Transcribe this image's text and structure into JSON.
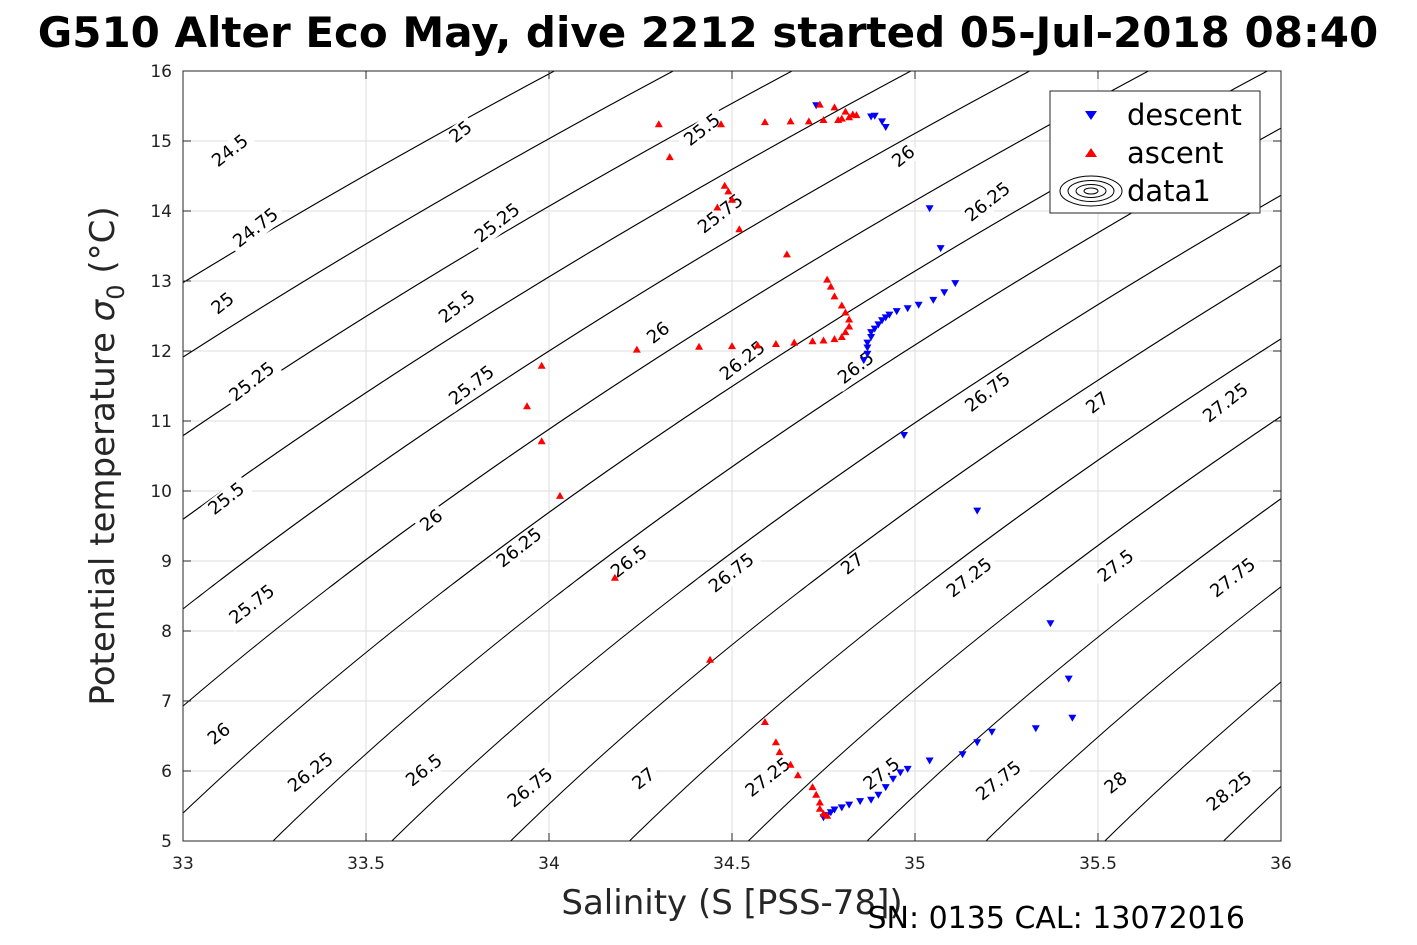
{
  "title": "G510 Alter Eco May, dive 2212 started 05-Jul-2018 08:40",
  "footer": "SN: 0135  CAL: 13072016",
  "colors": {
    "descent": "#0000ff",
    "ascent": "#ff0000",
    "contour": "#000000",
    "grid": "#dedede"
  },
  "chart_data": {
    "type": "scatter",
    "title": "G510 Alter Eco May, dive 2212 started 05-Jul-2018 08:40",
    "xlabel": "Salinity (S [PSS-78])",
    "ylabel_main": "Potential temperature ",
    "ylabel_sigma": "σ",
    "ylabel_sub": "0",
    "ylabel_unit": " (°C)",
    "xlim": [
      33,
      36
    ],
    "ylim": [
      5,
      16
    ],
    "xticks": [
      33,
      33.5,
      34,
      34.5,
      35,
      35.5,
      36
    ],
    "yticks": [
      5,
      6,
      7,
      8,
      9,
      10,
      11,
      12,
      13,
      14,
      15,
      16
    ],
    "grid": true,
    "legend": {
      "position": "top-right",
      "entries": [
        "descent",
        "ascent",
        "data1"
      ]
    },
    "contour_levels": [
      "24.5",
      "24.75",
      "25",
      "25.25",
      "25.5",
      "25.75",
      "26",
      "26.25",
      "26.5",
      "26.75",
      "27",
      "27.25",
      "27.5",
      "27.75",
      "28",
      "28.25"
    ],
    "contour_labels": [
      {
        "text": "24.5",
        "x": 33.13,
        "y": 14.85
      },
      {
        "text": "25",
        "x": 33.76,
        "y": 15.12
      },
      {
        "text": "25.5",
        "x": 34.42,
        "y": 15.15
      },
      {
        "text": "26",
        "x": 34.97,
        "y": 14.77
      },
      {
        "text": "24.75",
        "x": 33.2,
        "y": 13.75
      },
      {
        "text": "25.25",
        "x": 33.86,
        "y": 13.82
      },
      {
        "text": "25.75",
        "x": 34.47,
        "y": 13.95
      },
      {
        "text": "26.25",
        "x": 35.2,
        "y": 14.12
      },
      {
        "text": "25",
        "x": 33.11,
        "y": 12.67
      },
      {
        "text": "25.5",
        "x": 33.75,
        "y": 12.62
      },
      {
        "text": "26",
        "x": 34.3,
        "y": 12.25
      },
      {
        "text": "25.25",
        "x": 33.19,
        "y": 11.55
      },
      {
        "text": "25.75",
        "x": 33.79,
        "y": 11.5
      },
      {
        "text": "26.25",
        "x": 34.53,
        "y": 11.85
      },
      {
        "text": "26.5",
        "x": 34.84,
        "y": 11.75
      },
      {
        "text": "26.75",
        "x": 35.2,
        "y": 11.4
      },
      {
        "text": "27",
        "x": 35.5,
        "y": 11.25
      },
      {
        "text": "27.25",
        "x": 35.85,
        "y": 11.25
      },
      {
        "text": "25.5",
        "x": 33.12,
        "y": 9.88
      },
      {
        "text": "26",
        "x": 33.68,
        "y": 9.57
      },
      {
        "text": "26.25",
        "x": 33.92,
        "y": 9.18
      },
      {
        "text": "26.5",
        "x": 34.22,
        "y": 8.98
      },
      {
        "text": "26.75",
        "x": 34.5,
        "y": 8.82
      },
      {
        "text": "27",
        "x": 34.83,
        "y": 8.95
      },
      {
        "text": "27.25",
        "x": 35.15,
        "y": 8.75
      },
      {
        "text": "27.5",
        "x": 35.55,
        "y": 8.92
      },
      {
        "text": "27.75",
        "x": 35.87,
        "y": 8.75
      },
      {
        "text": "25.75",
        "x": 33.19,
        "y": 8.37
      },
      {
        "text": "26",
        "x": 33.1,
        "y": 6.52
      },
      {
        "text": "26.25",
        "x": 33.35,
        "y": 5.97
      },
      {
        "text": "26.5",
        "x": 33.66,
        "y": 6.0
      },
      {
        "text": "26.75",
        "x": 33.95,
        "y": 5.75
      },
      {
        "text": "27",
        "x": 34.26,
        "y": 5.88
      },
      {
        "text": "27.25",
        "x": 34.6,
        "y": 5.9
      },
      {
        "text": "27.5",
        "x": 34.91,
        "y": 5.95
      },
      {
        "text": "27.75",
        "x": 35.23,
        "y": 5.85
      },
      {
        "text": "28",
        "x": 35.55,
        "y": 5.82
      },
      {
        "text": "28.25",
        "x": 35.86,
        "y": 5.7
      }
    ],
    "series": [
      {
        "name": "descent",
        "color": "#0000ff",
        "marker": "triangle-down",
        "points": [
          [
            34.73,
            15.51
          ],
          [
            34.89,
            15.36
          ],
          [
            34.91,
            15.28
          ],
          [
            34.92,
            15.2
          ],
          [
            34.88,
            15.35
          ],
          [
            35.04,
            14.04
          ],
          [
            35.07,
            13.47
          ],
          [
            35.11,
            12.97
          ],
          [
            35.08,
            12.84
          ],
          [
            35.05,
            12.73
          ],
          [
            35.01,
            12.66
          ],
          [
            34.98,
            12.61
          ],
          [
            34.95,
            12.57
          ],
          [
            34.93,
            12.52
          ],
          [
            34.92,
            12.48
          ],
          [
            34.91,
            12.44
          ],
          [
            34.9,
            12.38
          ],
          [
            34.89,
            12.32
          ],
          [
            34.88,
            12.27
          ],
          [
            34.88,
            12.2
          ],
          [
            34.87,
            12.12
          ],
          [
            34.87,
            12.05
          ],
          [
            34.87,
            11.96
          ],
          [
            34.86,
            11.87
          ],
          [
            34.97,
            10.8
          ],
          [
            35.17,
            9.72
          ],
          [
            35.37,
            8.11
          ],
          [
            35.43,
            6.76
          ],
          [
            35.42,
            7.32
          ],
          [
            35.33,
            6.61
          ],
          [
            35.21,
            6.56
          ],
          [
            35.17,
            6.41
          ],
          [
            35.13,
            6.24
          ],
          [
            35.04,
            6.15
          ],
          [
            34.98,
            6.03
          ],
          [
            34.96,
            5.98
          ],
          [
            34.94,
            5.89
          ],
          [
            34.92,
            5.77
          ],
          [
            34.9,
            5.66
          ],
          [
            34.88,
            5.59
          ],
          [
            34.85,
            5.57
          ],
          [
            34.82,
            5.52
          ],
          [
            34.8,
            5.48
          ],
          [
            34.78,
            5.45
          ],
          [
            34.77,
            5.41
          ],
          [
            34.76,
            5.37
          ],
          [
            34.75,
            5.34
          ]
        ]
      },
      {
        "name": "ascent",
        "color": "#ff0000",
        "marker": "triangle-up",
        "points": [
          [
            34.74,
            15.52
          ],
          [
            34.78,
            15.48
          ],
          [
            34.81,
            15.42
          ],
          [
            34.83,
            15.38
          ],
          [
            34.84,
            15.37
          ],
          [
            34.82,
            15.34
          ],
          [
            34.8,
            15.32
          ],
          [
            34.79,
            15.3
          ],
          [
            34.75,
            15.3
          ],
          [
            34.71,
            15.28
          ],
          [
            34.66,
            15.28
          ],
          [
            34.59,
            15.27
          ],
          [
            34.47,
            15.24
          ],
          [
            34.3,
            15.24
          ],
          [
            34.33,
            14.77
          ],
          [
            34.48,
            14.36
          ],
          [
            34.49,
            14.28
          ],
          [
            34.5,
            14.16
          ],
          [
            34.46,
            14.05
          ],
          [
            34.52,
            13.74
          ],
          [
            34.65,
            13.38
          ],
          [
            34.76,
            13.02
          ],
          [
            34.77,
            12.92
          ],
          [
            34.78,
            12.78
          ],
          [
            34.8,
            12.65
          ],
          [
            34.81,
            12.55
          ],
          [
            34.82,
            12.45
          ],
          [
            34.82,
            12.35
          ],
          [
            34.81,
            12.27
          ],
          [
            34.8,
            12.2
          ],
          [
            34.78,
            12.17
          ],
          [
            34.75,
            12.15
          ],
          [
            34.72,
            12.14
          ],
          [
            34.67,
            12.12
          ],
          [
            34.62,
            12.1
          ],
          [
            34.57,
            12.08
          ],
          [
            34.5,
            12.07
          ],
          [
            34.41,
            12.06
          ],
          [
            34.24,
            12.02
          ],
          [
            33.98,
            11.79
          ],
          [
            33.94,
            11.21
          ],
          [
            33.98,
            10.71
          ],
          [
            34.03,
            9.93
          ],
          [
            34.18,
            8.76
          ],
          [
            34.44,
            7.59
          ],
          [
            34.59,
            6.7
          ],
          [
            34.62,
            6.41
          ],
          [
            34.63,
            6.27
          ],
          [
            34.66,
            6.09
          ],
          [
            34.68,
            5.94
          ],
          [
            34.72,
            5.77
          ],
          [
            34.73,
            5.66
          ],
          [
            34.74,
            5.55
          ],
          [
            34.74,
            5.46
          ],
          [
            34.75,
            5.39
          ],
          [
            34.76,
            5.36
          ]
        ]
      }
    ]
  }
}
